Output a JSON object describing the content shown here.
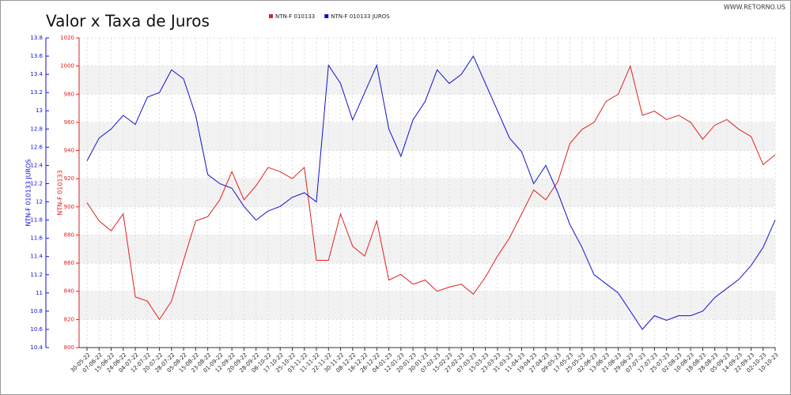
{
  "chart_data": {
    "type": "line",
    "title": "Valor x Taxa de Juros",
    "watermark": "WWW.RETORNO.US",
    "y_label": "NTN-F 010133",
    "y2_label": "NTN-F 010133 JUROS",
    "categories": [
      "30-05-22",
      "07-06-22",
      "15-06-22",
      "24-06-22",
      "04-07-22",
      "12-07-22",
      "20-07-22",
      "28-07-22",
      "05-08-22",
      "15-08-22",
      "23-08-22",
      "01-09-22",
      "12-09-22",
      "20-09-22",
      "28-09-22",
      "06-10-22",
      "17-10-22",
      "25-10-22",
      "03-11-22",
      "11-11-22",
      "22-11-22",
      "30-11-22",
      "08-12-22",
      "16-12-22",
      "26-12-22",
      "04-01-23",
      "12-01-23",
      "20-01-23",
      "30-01-23",
      "07-02-23",
      "15-02-23",
      "27-02-23",
      "07-03-23",
      "15-03-23",
      "23-03-23",
      "31-03-23",
      "11-04-23",
      "19-04-23",
      "27-04-23",
      "09-05-23",
      "17-05-23",
      "25-05-23",
      "02-06-23",
      "13-06-23",
      "21-06-23",
      "29-06-23",
      "07-07-23",
      "17-07-23",
      "25-07-23",
      "02-08-23",
      "10-08-23",
      "18-08-23",
      "28-08-23",
      "05-09-23",
      "14-09-23",
      "22-09-23",
      "02-10-23",
      "10-10-23"
    ],
    "series": [
      {
        "name": "NTN-F 010133",
        "color": "#e02020",
        "values": [
          903,
          890,
          883,
          895,
          836,
          833,
          820,
          833,
          862,
          890,
          893,
          905,
          925,
          905,
          915,
          928,
          925,
          920,
          928,
          862,
          862,
          895,
          872,
          865,
          890,
          848,
          852,
          845,
          848,
          840,
          843,
          845,
          838,
          850,
          865,
          878,
          895,
          912,
          905,
          918,
          945,
          955,
          960,
          975,
          980,
          1000,
          965,
          968,
          962,
          965,
          960,
          948,
          958,
          962,
          955,
          950,
          930,
          937
        ]
      },
      {
        "name": "NTN-F 010133 JUROS",
        "color": "#1010d0",
        "axis": "y2",
        "values": [
          12.45,
          12.7,
          12.8,
          12.95,
          12.85,
          13.15,
          13.2,
          13.45,
          13.35,
          12.95,
          12.3,
          12.2,
          12.15,
          11.95,
          11.8,
          11.9,
          11.95,
          12.05,
          12.1,
          12.0,
          13.5,
          13.3,
          12.9,
          13.2,
          13.5,
          12.8,
          12.5,
          12.9,
          13.1,
          13.45,
          13.3,
          13.4,
          13.6,
          13.3,
          13.0,
          12.7,
          12.55,
          12.2,
          12.4,
          12.1,
          11.75,
          11.5,
          11.2,
          11.1,
          11.0,
          10.8,
          10.6,
          10.75,
          10.7,
          10.75,
          10.75,
          10.8,
          10.95,
          11.05,
          11.15,
          11.3,
          11.5,
          11.8
        ]
      }
    ],
    "ylim": [
      800,
      1020
    ],
    "yticks": [
      800,
      820,
      840,
      860,
      880,
      900,
      920,
      940,
      960,
      980,
      1000,
      1020
    ],
    "y2lim": [
      10.4,
      13.8
    ],
    "y2ticks": [
      10.4,
      10.6,
      10.8,
      11,
      11.2,
      11.4,
      11.6,
      11.8,
      12,
      12.2,
      12.4,
      12.6,
      12.8,
      13,
      13.2,
      13.4,
      13.6,
      13.8
    ],
    "grid": true
  }
}
